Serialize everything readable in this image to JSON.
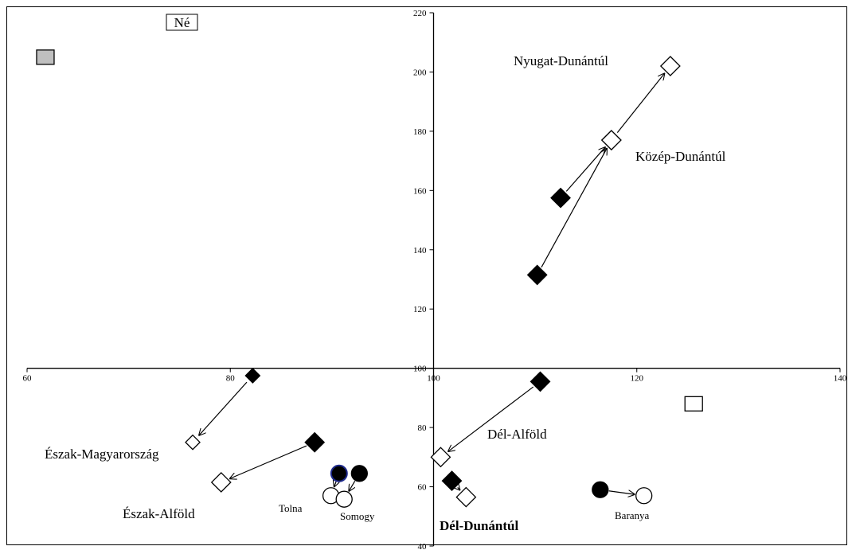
{
  "chart_data": {
    "type": "scatter",
    "title": "",
    "xlabel": "",
    "ylabel": "",
    "xlim": [
      60,
      140
    ],
    "ylim": [
      40,
      220
    ],
    "axes_cross": {
      "x_at_y": 100,
      "y_at_x": 100
    },
    "x_ticks": [
      60,
      80,
      100,
      120,
      140
    ],
    "y_ticks": [
      40,
      60,
      80,
      100,
      120,
      140,
      160,
      180,
      200,
      220
    ],
    "legend_box_label": "Né",
    "grid": false,
    "colors": {
      "filled": "#000000",
      "hollow": "#ffffff",
      "legend_swatch": "#bfbfbf",
      "tolna_outline": "#1f2a8c"
    },
    "regions": [
      {
        "name": "Nyugat-Dunántúl",
        "label_style": "normal",
        "shape": "diamond",
        "from": [
          123.3,
          202
        ],
        "to": [
          123.3,
          202
        ],
        "single": true
      },
      {
        "name": "Közép-Dunántúl",
        "label_style": "normal",
        "shape": "diamond",
        "from": [
          112.5,
          157.5
        ],
        "to": [
          117.5,
          177
        ]
      },
      {
        "name": "",
        "label_style": "none",
        "shape": "diamond",
        "from": [
          110.2,
          131.5
        ],
        "to": [
          117.5,
          177
        ]
      },
      {
        "name": "Észak-Magyarország",
        "label_style": "normal",
        "shape": "diamond_small",
        "from": [
          82.2,
          97.5
        ],
        "to": [
          76.3,
          75
        ]
      },
      {
        "name": "Észak-Alföld",
        "label_style": "normal",
        "shape": "diamond",
        "from": [
          88.3,
          75
        ],
        "to": [
          79.1,
          61.5
        ]
      },
      {
        "name": "Dél-Alföld",
        "label_style": "normal",
        "shape": "diamond",
        "from": [
          110.5,
          95.5
        ],
        "to": [
          100.7,
          70
        ]
      },
      {
        "name": "Dél-Dunántúl",
        "label_style": "bold",
        "shape": "diamond",
        "from": [
          101.8,
          62
        ],
        "to": [
          103.2,
          56.5
        ]
      },
      {
        "name": "Tolna",
        "label_style": "small",
        "shape": "circle",
        "from": [
          90.7,
          64.5
        ],
        "to": [
          89.9,
          57
        ],
        "from_outline": "#1f2a8c"
      },
      {
        "name": "Somogy",
        "label_style": "small",
        "shape": "circle",
        "from": [
          92.7,
          64.5
        ],
        "to": [
          91.2,
          55.8
        ]
      },
      {
        "name": "Baranya",
        "label_style": "small",
        "shape": "circle",
        "from": [
          116.4,
          59
        ],
        "to": [
          120.7,
          57
        ]
      }
    ],
    "extra_marks": [
      {
        "shape": "square",
        "fill": "#bfbfbf",
        "x": 61.8,
        "y": 205
      },
      {
        "shape": "square",
        "fill": "#ffffff",
        "x": 125.6,
        "y": 88
      }
    ]
  }
}
